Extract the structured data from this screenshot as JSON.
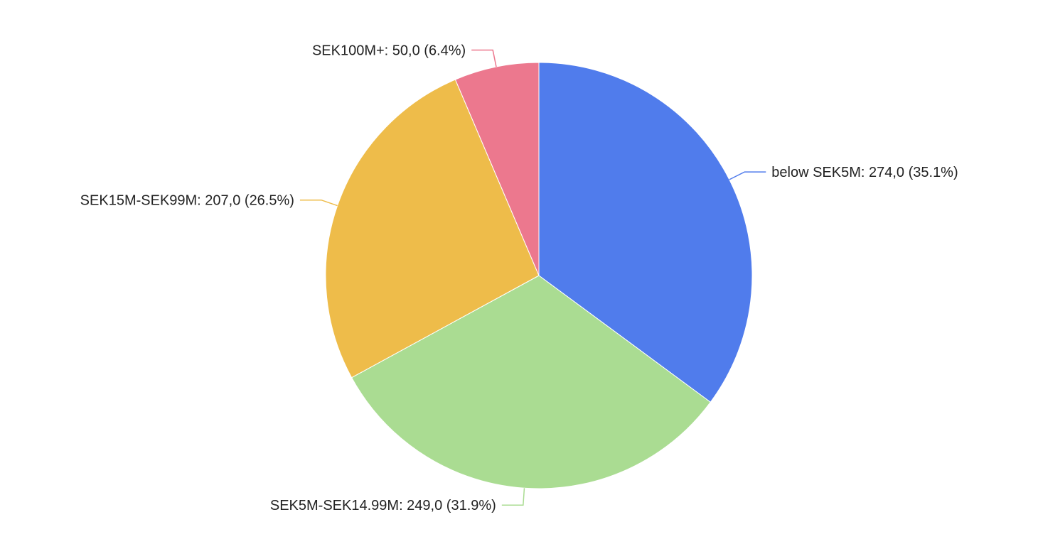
{
  "chart_data": {
    "type": "pie",
    "title": "",
    "start_angle_deg": 0,
    "direction": "clockwise",
    "slices": [
      {
        "name": "below SEK5M",
        "value": 274.0,
        "percent": 35.1,
        "color": "#507cec",
        "label": "below SEK5M: 274,0 (35.1%)"
      },
      {
        "name": "SEK5M-SEK14.99M",
        "value": 249.0,
        "percent": 31.9,
        "color": "#aadc92",
        "label": "SEK5M-SEK14.99M: 249,0 (31.9%)"
      },
      {
        "name": "SEK15M-SEK99M",
        "value": 207.0,
        "percent": 26.5,
        "color": "#eebc4a",
        "label": "SEK15M-SEK99M: 207,0 (26.5%)"
      },
      {
        "name": "SEK100M+",
        "value": 50.0,
        "percent": 6.4,
        "color": "#ec788e",
        "label": "SEK100M+: 50,0 (6.4%)"
      }
    ],
    "legend": "none"
  }
}
